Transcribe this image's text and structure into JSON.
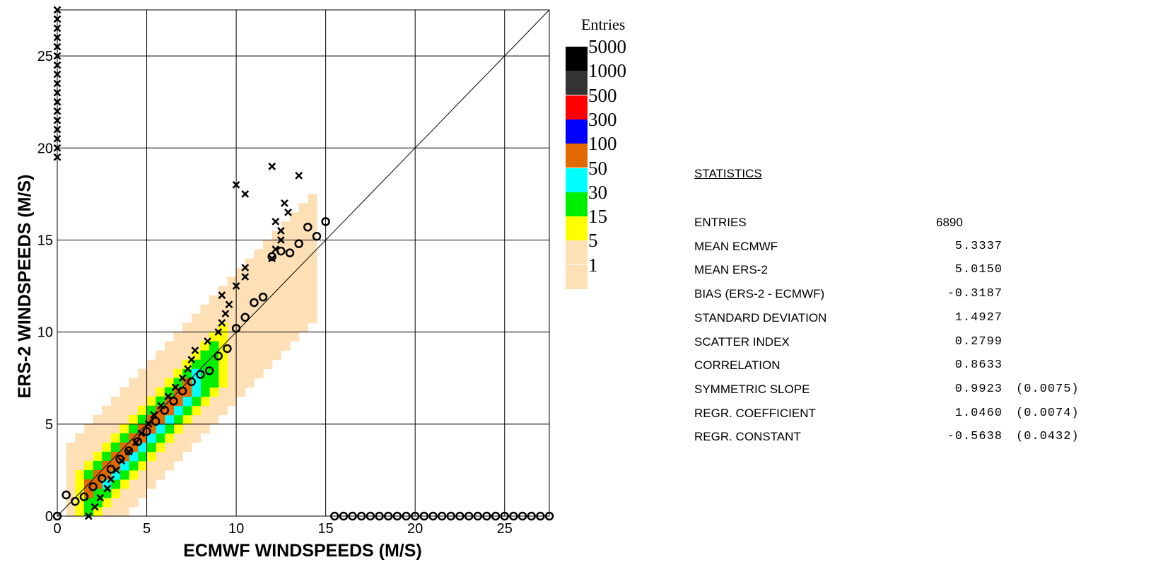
{
  "chart_data": {
    "type": "heatmap",
    "title": "",
    "xlabel": "ECMWF  WINDSPEEDS (M/S)",
    "ylabel": "ERS-2  WINDSPEEDS (M/S)",
    "xlim": [
      0,
      27.5
    ],
    "ylim": [
      0,
      27.5
    ],
    "xticks": [
      0,
      5,
      10,
      15,
      20,
      25
    ],
    "yticks": [
      0,
      5,
      10,
      15,
      20,
      25
    ],
    "tick_labels": [
      "0",
      "5",
      "10",
      "15",
      "20",
      "25"
    ],
    "grid": true,
    "diagonal": "y = x",
    "bin_width": 0.5,
    "legend": {
      "title": "Entries",
      "placement": "right",
      "levels": [
        {
          "label": "5000",
          "color": "#000000"
        },
        {
          "label": "1000",
          "color": "#333333"
        },
        {
          "label": "500",
          "color": "#ff0000"
        },
        {
          "label": "300",
          "color": "#0000ff"
        },
        {
          "label": "100",
          "color": "#e06a00"
        },
        {
          "label": "50",
          "color": "#00ffff"
        },
        {
          "label": "30",
          "color": "#00ee00"
        },
        {
          "label": "15",
          "color": "#ffff00"
        },
        {
          "label": "5",
          "color": "#fde0b6"
        },
        {
          "label": "1",
          "color": "#fde0b6"
        }
      ]
    },
    "density_bands": [
      {
        "level": "1",
        "color": "#fde0b6",
        "half_width": 3.4,
        "from": 0.5,
        "to": 14.5
      },
      {
        "level": "5",
        "color": "#ffff00",
        "half_width": 1.6,
        "from": 1.0,
        "to": 9.5
      },
      {
        "level": "15",
        "color": "#00ee00",
        "half_width": 1.1,
        "from": 1.5,
        "to": 9.0
      },
      {
        "level": "30",
        "color": "#00ffff",
        "half_width": 0.7,
        "from": 2.5,
        "to": 8.0
      },
      {
        "level": "50",
        "color": "#e06a00",
        "half_width": 0.45,
        "from": 1.5,
        "to": 7.5
      }
    ],
    "series": [
      {
        "marker": "circle",
        "points": [
          [
            0,
            0
          ],
          [
            0.5,
            1.15
          ],
          [
            1,
            0.8
          ],
          [
            1.5,
            1.05
          ],
          [
            2,
            1.6
          ],
          [
            2.5,
            2.05
          ],
          [
            3,
            2.55
          ],
          [
            3.5,
            3.1
          ],
          [
            4,
            3.55
          ],
          [
            4.5,
            4.05
          ],
          [
            5,
            4.6
          ],
          [
            5.5,
            5.15
          ],
          [
            6,
            5.75
          ],
          [
            6.5,
            6.25
          ],
          [
            7,
            6.8
          ],
          [
            7.5,
            7.3
          ],
          [
            8,
            7.7
          ],
          [
            8.5,
            7.9
          ],
          [
            9,
            8.7
          ],
          [
            9.5,
            9.1
          ],
          [
            10,
            10.2
          ],
          [
            10.5,
            10.8
          ],
          [
            11,
            11.6
          ],
          [
            11.5,
            11.9
          ],
          [
            12,
            14.1
          ],
          [
            12.5,
            14.4
          ],
          [
            13,
            14.3
          ],
          [
            13.5,
            14.8
          ],
          [
            14,
            15.7
          ],
          [
            14.5,
            15.2
          ],
          [
            15,
            16
          ],
          [
            15.5,
            0
          ],
          [
            16,
            0
          ],
          [
            16.5,
            0
          ],
          [
            17,
            0
          ],
          [
            17.5,
            0
          ],
          [
            18,
            0
          ],
          [
            18.5,
            0
          ],
          [
            19,
            0
          ],
          [
            19.5,
            0
          ],
          [
            20,
            0
          ],
          [
            20.5,
            0
          ],
          [
            21,
            0
          ],
          [
            21.5,
            0
          ],
          [
            22,
            0
          ],
          [
            22.5,
            0
          ],
          [
            23,
            0
          ],
          [
            23.5,
            0
          ],
          [
            24,
            0
          ],
          [
            24.5,
            0
          ],
          [
            25,
            0
          ],
          [
            25.5,
            0
          ],
          [
            26,
            0
          ],
          [
            26.5,
            0
          ],
          [
            27,
            0
          ],
          [
            27.5,
            0
          ]
        ]
      },
      {
        "marker": "cross",
        "points": [
          [
            1.75,
            0
          ],
          [
            2.1,
            0.5
          ],
          [
            2.4,
            1
          ],
          [
            2.8,
            1.5
          ],
          [
            3,
            2
          ],
          [
            3.3,
            2.5
          ],
          [
            3.6,
            3
          ],
          [
            4,
            3.5
          ],
          [
            4.4,
            4
          ],
          [
            4.7,
            4.5
          ],
          [
            5.1,
            5
          ],
          [
            5.4,
            5.5
          ],
          [
            5.8,
            6
          ],
          [
            6.2,
            6.5
          ],
          [
            6.6,
            7
          ],
          [
            7,
            7.5
          ],
          [
            7.3,
            8
          ],
          [
            7.5,
            8.5
          ],
          [
            7.7,
            9
          ],
          [
            8.4,
            9.5
          ],
          [
            9,
            10
          ],
          [
            9.2,
            10.5
          ],
          [
            9.4,
            11
          ],
          [
            9.6,
            11.5
          ],
          [
            9.2,
            12
          ],
          [
            10,
            12.5
          ],
          [
            10.5,
            13
          ],
          [
            10.5,
            13.5
          ],
          [
            12,
            14
          ],
          [
            12.2,
            14.5
          ],
          [
            12.5,
            15
          ],
          [
            12.5,
            15.5
          ],
          [
            12.2,
            16
          ],
          [
            12.9,
            16.5
          ],
          [
            12.7,
            17
          ],
          [
            10.5,
            17.5
          ],
          [
            10,
            18
          ],
          [
            13.5,
            18.5
          ],
          [
            12,
            19
          ],
          [
            0,
            19.5
          ],
          [
            0,
            20
          ],
          [
            0,
            20.5
          ],
          [
            0,
            21
          ],
          [
            0,
            21.5
          ],
          [
            0,
            22
          ],
          [
            0,
            22.5
          ],
          [
            0,
            23
          ],
          [
            0,
            23.5
          ],
          [
            0,
            24
          ],
          [
            0,
            24.5
          ],
          [
            0,
            25
          ],
          [
            0,
            25.5
          ],
          [
            0,
            26
          ],
          [
            0,
            26.5
          ],
          [
            0,
            27
          ],
          [
            0,
            27.5
          ]
        ]
      }
    ]
  },
  "statistics": {
    "title": "STATISTICS",
    "rows": [
      {
        "label": "ENTRIES",
        "value": "6890",
        "error": ""
      },
      {
        "label": "MEAN ECMWF",
        "value": "5.3337",
        "error": ""
      },
      {
        "label": "MEAN ERS-2",
        "value": "5.0150",
        "error": ""
      },
      {
        "label": "BIAS (ERS-2 - ECMWF)",
        "value": "-0.3187",
        "error": ""
      },
      {
        "label": "STANDARD DEVIATION",
        "value": "1.4927",
        "error": ""
      },
      {
        "label": "SCATTER INDEX",
        "value": "0.2799",
        "error": ""
      },
      {
        "label": "CORRELATION",
        "value": "0.8633",
        "error": ""
      },
      {
        "label": "SYMMETRIC SLOPE",
        "value": "0.9923",
        "error": "(0.0075)"
      },
      {
        "label": "REGR. COEFFICIENT",
        "value": "1.0460",
        "error": "(0.0074)"
      },
      {
        "label": "REGR. CONSTANT",
        "value": "-0.5638",
        "error": "(0.0432)"
      }
    ]
  }
}
